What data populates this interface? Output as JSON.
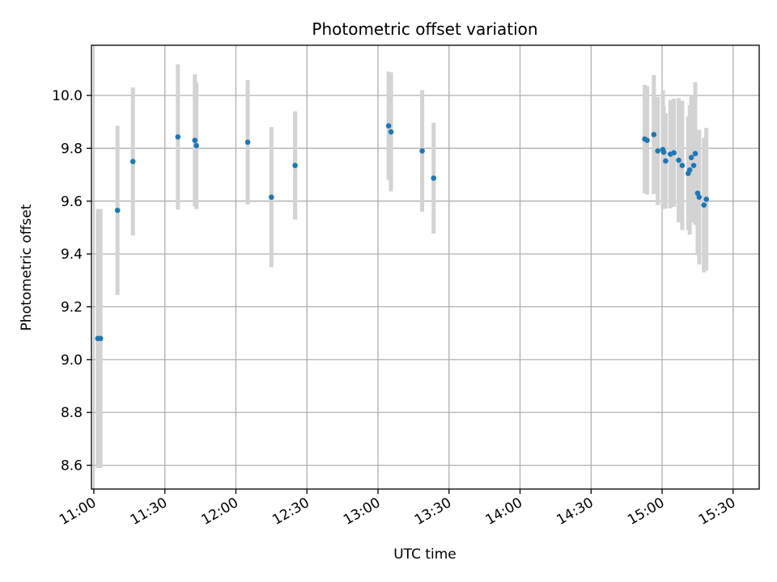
{
  "chart_data": {
    "type": "scatter",
    "title": "Photometric offset variation",
    "xlabel": "UTC time",
    "ylabel": "Photometric offset",
    "x_ticks": [
      "11:00",
      "11:30",
      "12:00",
      "12:30",
      "13:00",
      "13:30",
      "14:00",
      "14:30",
      "15:00",
      "15:30"
    ],
    "x_tick_minutes": [
      660,
      690,
      720,
      750,
      780,
      810,
      840,
      870,
      900,
      930
    ],
    "y_ticks": [
      "8.6",
      "8.8",
      "9.0",
      "9.2",
      "9.4",
      "9.6",
      "9.8",
      "10.0"
    ],
    "y_tick_values": [
      8.6,
      8.8,
      9.0,
      9.2,
      9.4,
      9.6,
      9.8,
      10.0
    ],
    "xlim": [
      "10:59",
      "15:41"
    ],
    "ylim": [
      8.51,
      10.19
    ],
    "grid": true,
    "colors": {
      "points": "#1f77b4",
      "error_bars": "#d3d3d3"
    },
    "series": [
      {
        "points": [
          {
            "x": "11:01:40",
            "y": 9.08,
            "yerr": 0.49
          },
          {
            "x": "11:02:50",
            "y": 9.08,
            "yerr": 0.49
          },
          {
            "x": "11:10:00",
            "y": 9.565,
            "yerr": 0.32
          },
          {
            "x": "11:16:30",
            "y": 9.75,
            "yerr": 0.28
          },
          {
            "x": "11:35:30",
            "y": 9.843,
            "yerr": 0.275
          },
          {
            "x": "11:42:40",
            "y": 9.83,
            "yerr": 0.25
          },
          {
            "x": "11:43:20",
            "y": 9.81,
            "yerr": 0.24
          },
          {
            "x": "12:05:00",
            "y": 9.823,
            "yerr": 0.235
          },
          {
            "x": "12:15:00",
            "y": 9.615,
            "yerr": 0.265
          },
          {
            "x": "12:25:00",
            "y": 9.735,
            "yerr": 0.205
          },
          {
            "x": "13:04:30",
            "y": 9.885,
            "yerr": 0.205
          },
          {
            "x": "13:05:30",
            "y": 9.862,
            "yerr": 0.225
          },
          {
            "x": "13:18:40",
            "y": 9.79,
            "yerr": 0.23
          },
          {
            "x": "13:23:30",
            "y": 9.687,
            "yerr": 0.21
          },
          {
            "x": "14:52:40",
            "y": 9.835,
            "yerr": 0.205
          },
          {
            "x": "14:53:40",
            "y": 9.83,
            "yerr": 0.205
          },
          {
            "x": "14:56:30",
            "y": 9.852,
            "yerr": 0.225
          },
          {
            "x": "14:58:10",
            "y": 9.79,
            "yerr": 0.205
          },
          {
            "x": "15:00:20",
            "y": 9.795,
            "yerr": 0.225
          },
          {
            "x": "15:00:40",
            "y": 9.785,
            "yerr": 0.175
          },
          {
            "x": "15:01:30",
            "y": 9.752,
            "yerr": 0.18
          },
          {
            "x": "15:03:30",
            "y": 9.778,
            "yerr": 0.205
          },
          {
            "x": "15:05:00",
            "y": 9.783,
            "yerr": 0.205
          },
          {
            "x": "15:07:00",
            "y": 9.755,
            "yerr": 0.235
          },
          {
            "x": "15:08:30",
            "y": 9.735,
            "yerr": 0.245
          },
          {
            "x": "15:11:00",
            "y": 9.705,
            "yerr": 0.215
          },
          {
            "x": "15:11:40",
            "y": 9.718,
            "yerr": 0.245
          },
          {
            "x": "15:12:20",
            "y": 9.765,
            "yerr": 0.235
          },
          {
            "x": "15:13:20",
            "y": 9.735,
            "yerr": 0.215
          },
          {
            "x": "15:14:00",
            "y": 9.78,
            "yerr": 0.27
          },
          {
            "x": "15:15:00",
            "y": 9.63,
            "yerr": 0.235
          },
          {
            "x": "15:15:40",
            "y": 9.615,
            "yerr": 0.255
          },
          {
            "x": "15:17:40",
            "y": 9.585,
            "yerr": 0.255
          },
          {
            "x": "15:18:40",
            "y": 9.607,
            "yerr": 0.27
          }
        ]
      }
    ]
  }
}
